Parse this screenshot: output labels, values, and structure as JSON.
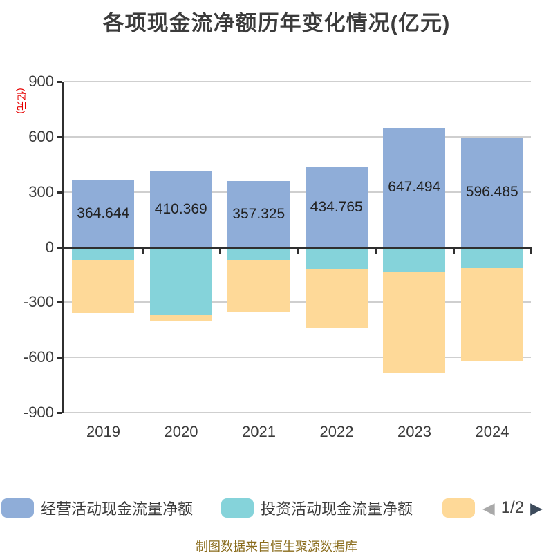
{
  "title": "各项现金流净额历年变化情况(亿元)",
  "y_axis": {
    "unit_label": "(亿元)",
    "ticks": [
      "900",
      "600",
      "300",
      "0",
      "-300",
      "-600",
      "-900"
    ]
  },
  "legend": {
    "items": [
      {
        "label": "经营活动现金流量净额",
        "color": "#8FADD8"
      },
      {
        "label": "投资活动现金流量净额",
        "color": "#85D3DA"
      },
      {
        "label": "",
        "color": "#FED998"
      }
    ],
    "pagination": "1/2",
    "prev_icon": "◀",
    "next_icon": "▶"
  },
  "footer": "制图数据来自恒生聚源数据库",
  "colors": {
    "grid": "#cfcfcf",
    "axis": "#2f2f2f",
    "unit_label": "#e60000",
    "footer_text": "#8a6c1c"
  },
  "chart_data": {
    "type": "bar",
    "stacked": true,
    "title": "各项现金流净额历年变化情况(亿元)",
    "categories": [
      "2019",
      "2020",
      "2021",
      "2022",
      "2023",
      "2024"
    ],
    "series": [
      {
        "name": "经营活动现金流量净额",
        "color": "#8FADD8",
        "values": [
          364.644,
          410.369,
          357.325,
          434.765,
          647.494,
          596.485
        ],
        "labels_visible": true
      },
      {
        "name": "投资活动现金流量净额",
        "color": "#85D3DA",
        "values": [
          -71,
          -372,
          -71,
          -120,
          -132,
          -114
        ],
        "estimated": true
      },
      {
        "name": "",
        "color": "#FED998",
        "values": [
          -287,
          -33,
          -283,
          -320,
          -554,
          -506
        ],
        "estimated": true
      }
    ],
    "ylim": [
      -900,
      900
    ],
    "y_tick_step": 300,
    "grid": true,
    "legend_position": "bottom"
  }
}
